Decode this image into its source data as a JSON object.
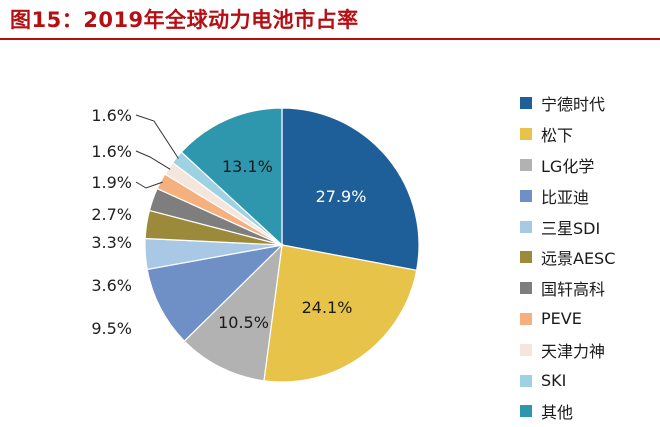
{
  "title": "图15：2019年全球动力电池市占率",
  "colors": {
    "title": "#b50f14",
    "outside_label": "#222222",
    "leader_line": "#333333"
  },
  "chart_data": {
    "type": "pie",
    "start": "12 o'clock, clockwise",
    "legend_position": "right",
    "slices": [
      {
        "label": "宁德时代",
        "value": 27.9,
        "display": "27.9%",
        "color": "#1f5f99",
        "label_mode": "inside",
        "text_color": "#ffffff"
      },
      {
        "label": "松下",
        "value": 24.1,
        "display": "24.1%",
        "color": "#e8c349",
        "label_mode": "inside",
        "text_color": "#1a1a1a"
      },
      {
        "label": "LG化学",
        "value": 10.5,
        "display": "10.5%",
        "color": "#b2b2b2",
        "label_mode": "inside",
        "text_color": "#1a1a1a"
      },
      {
        "label": "比亚迪",
        "value": 9.5,
        "display": "9.5%",
        "color": "#6e90c6",
        "label_mode": "outside"
      },
      {
        "label": "三星SDI",
        "value": 3.6,
        "display": "3.6%",
        "color": "#a9c8e6",
        "label_mode": "outside"
      },
      {
        "label": "远景AESC",
        "value": 3.3,
        "display": "3.3%",
        "color": "#9c8a3b",
        "label_mode": "outside"
      },
      {
        "label": "国轩高科",
        "value": 2.7,
        "display": "2.7%",
        "color": "#7e7e7e",
        "label_mode": "outside"
      },
      {
        "label": "PEVE",
        "value": 1.9,
        "display": "1.9%",
        "color": "#f5b07e",
        "label_mode": "outside"
      },
      {
        "label": "天津力神",
        "value": 1.6,
        "display": "1.6%",
        "color": "#f4e6dc",
        "label_mode": "outside"
      },
      {
        "label": "SKI",
        "value": 1.6,
        "display": "1.6%",
        "color": "#9ed2e2",
        "label_mode": "outside"
      },
      {
        "label": "其他",
        "value": 13.1,
        "display": "13.1%",
        "color": "#2f97ad",
        "label_mode": "inside",
        "text_color": "#1a1a1a"
      }
    ]
  }
}
